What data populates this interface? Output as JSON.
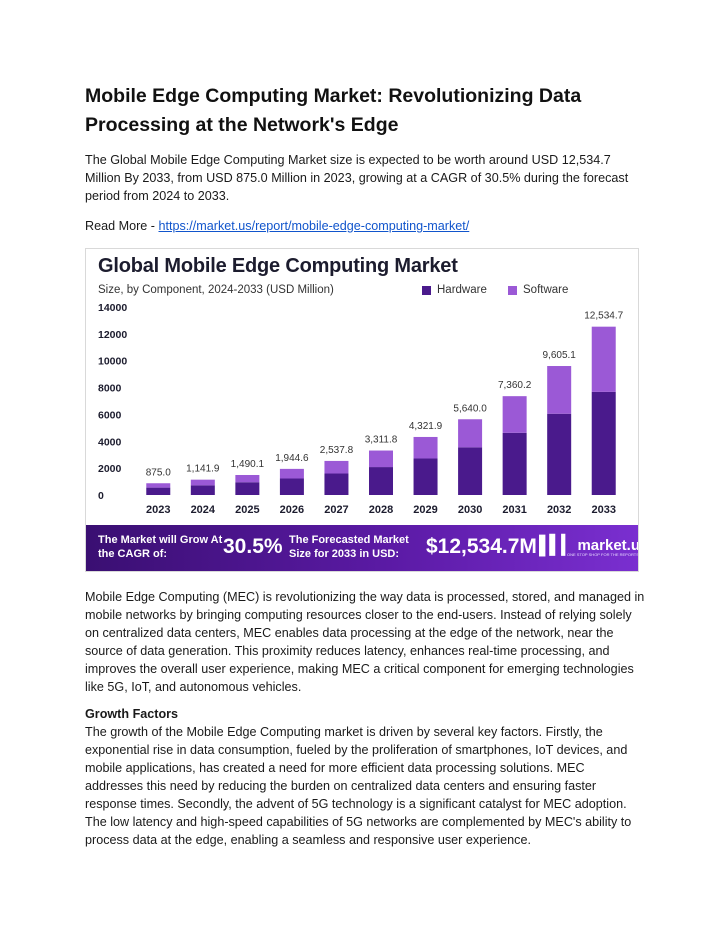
{
  "document": {
    "title": "Mobile Edge Computing Market: Revolutionizing Data Processing at the Network's Edge",
    "intro": "The Global Mobile Edge Computing Market size is expected to be worth around USD 12,534.7 Million By 2033, from USD 875.0 Million in 2023, growing at a CAGR of 30.5% during the forecast period from 2024 to 2033.",
    "read_more_label": "Read More - ",
    "read_more_link": " https://market.us/report/mobile-edge-computing-market/",
    "paragraph_mec": "Mobile Edge Computing (MEC) is revolutionizing the way data is processed, stored, and managed in mobile networks by bringing computing resources closer to the end-users. Instead of relying solely on centralized data centers, MEC enables data processing at the edge of the network, near the source of data generation. This proximity reduces latency, enhances real-time processing, and improves the overall user experience, making MEC a critical component for emerging technologies like 5G, IoT, and autonomous vehicles.",
    "growth_heading": "Growth Factors",
    "growth_text": "The growth of the Mobile Edge Computing market is driven by several key factors. Firstly, the exponential rise in data consumption, fueled by the proliferation of smartphones, IoT devices, and mobile applications, has created a need for more efficient data processing solutions. MEC addresses this need by reducing the burden on centralized data centers and ensuring faster response times. Secondly, the advent of 5G technology is a significant catalyst for MEC adoption. The low latency and high-speed capabilities of 5G networks are complemented by MEC's ability to process data at the edge, enabling a seamless and responsive user experience."
  },
  "infographic": {
    "banner": {
      "grow_text": "The Market will Grow At the CAGR of:",
      "cagr": "30.5%",
      "forecast_text": "The Forecasted Market Size for 2033 in USD:",
      "forecast_value": "$12,534.7M",
      "logo_name": "market.us",
      "logo_tagline": "ONE STOP SHOP FOR THE REPORTS"
    },
    "colors": {
      "hardware": "#4a1a8c",
      "software": "#9b59d6"
    }
  },
  "chart_data": {
    "type": "bar",
    "stacked": true,
    "title": "Global Mobile Edge Computing Market",
    "subtitle": "Size, by Component, 2024-2033 (USD Million)",
    "categories": [
      "2023",
      "2024",
      "2025",
      "2026",
      "2027",
      "2028",
      "2029",
      "2030",
      "2031",
      "2032",
      "2033"
    ],
    "series": [
      {
        "name": "Hardware",
        "values": [
          550,
          720,
          950,
          1230,
          1600,
          2080,
          2720,
          3550,
          4630,
          6050,
          7680
        ]
      },
      {
        "name": "Software",
        "values": [
          325,
          422,
          540,
          715,
          938,
          1232,
          1602,
          2090,
          2730,
          3555,
          4855
        ]
      }
    ],
    "totals": [
      875.0,
      1141.9,
      1490.1,
      1944.6,
      2537.8,
      3311.8,
      4321.9,
      5640.0,
      7360.2,
      9605.1,
      12534.7
    ],
    "total_labels": [
      "875.0",
      "1,141.9",
      "1,490.1",
      "1,944.6",
      "2,537.8",
      "3,311.8",
      "4,321.9",
      "5,640.0",
      "7,360.2",
      "9,605.1",
      "12,534.7"
    ],
    "yticks": [
      "0",
      "2000",
      "4000",
      "6000",
      "8000",
      "10000",
      "12000",
      "14000"
    ],
    "ylim": [
      0,
      14000
    ],
    "legend_position": "top-right",
    "grid": false
  }
}
